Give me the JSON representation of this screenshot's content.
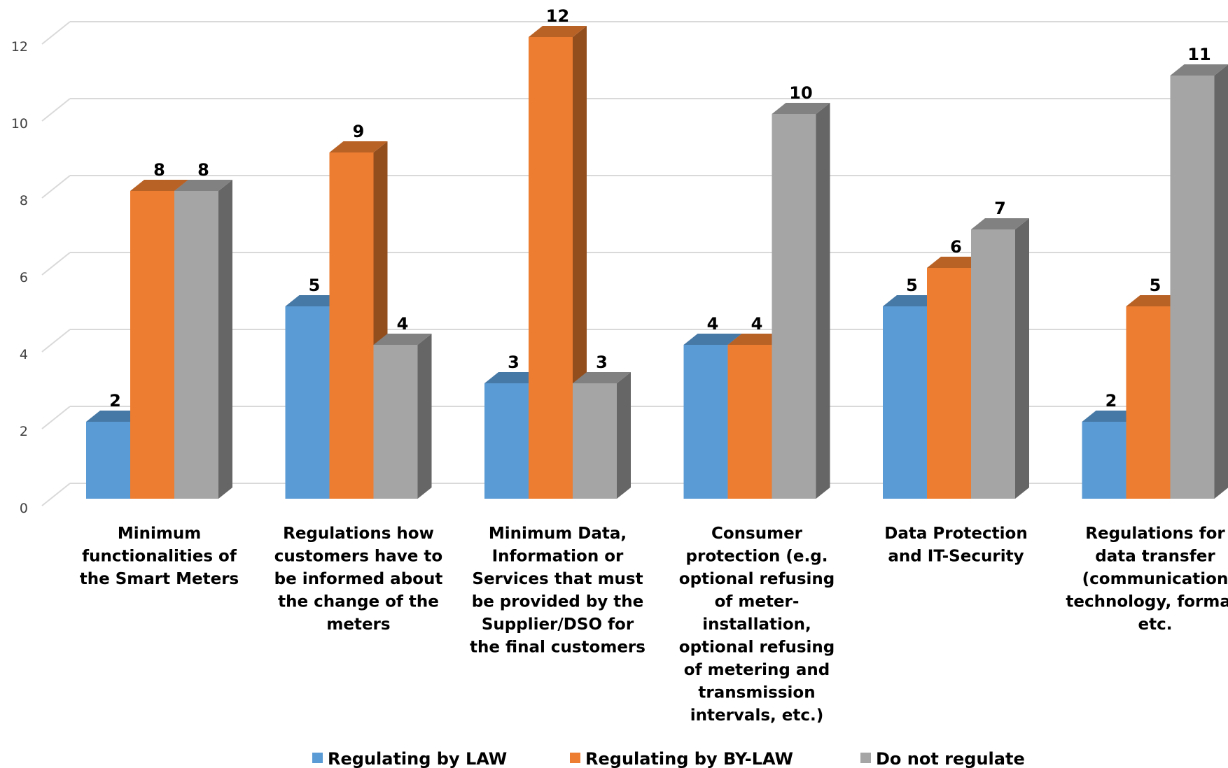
{
  "chart_data": {
    "type": "bar",
    "style": "3d-clustered-column",
    "categories": [
      [
        "Minimum",
        "functionalities of",
        "the Smart Meters"
      ],
      [
        "Regulations how",
        "customers have to",
        "be informed about",
        "the change of the",
        "meters"
      ],
      [
        "Minimum Data,",
        "Information or",
        "Services that must",
        "be provided by the",
        "Supplier/DSO for",
        "the final customers"
      ],
      [
        "Consumer",
        "protection (e.g.",
        "optional refusing",
        "of meter-",
        "installation,",
        "optional refusing",
        "of metering and",
        "transmission",
        "intervals, etc.)"
      ],
      [
        "Data Protection",
        "and IT-Security"
      ],
      [
        "Regulations for",
        "data transfer",
        "(communication",
        "technology, format,",
        "etc."
      ]
    ],
    "series": [
      {
        "name": "Regulating by LAW",
        "color": "#5B9BD5",
        "values": [
          2,
          5,
          3,
          4,
          5,
          2
        ]
      },
      {
        "name": "Regulating by BY-LAW",
        "color": "#ED7D31",
        "values": [
          8,
          9,
          12,
          4,
          6,
          5
        ]
      },
      {
        "name": "Do not regulate",
        "color": "#A5A5A5",
        "values": [
          8,
          4,
          3,
          10,
          7,
          11
        ]
      }
    ],
    "ylim": [
      0,
      12
    ],
    "yticks": [
      "0",
      "2",
      "4",
      "6",
      "8",
      "10",
      "12"
    ],
    "grid": true,
    "legend_position": "bottom",
    "data_labels": true
  }
}
